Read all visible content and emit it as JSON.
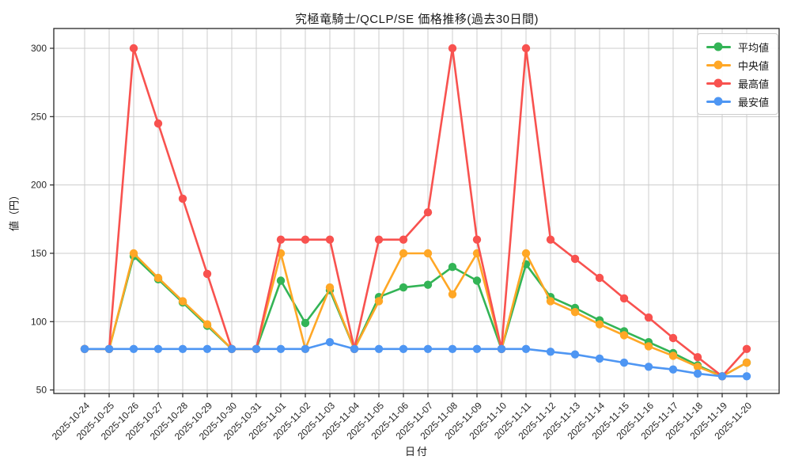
{
  "figure": {
    "title": "究極竜騎士/QCLP/SE 価格推移(過去30日間)",
    "xlabel": "日付",
    "ylabel": "値（円）"
  },
  "legend": {
    "position": "upper right",
    "items": [
      {
        "key": "average",
        "label": "平均値",
        "color": "#33b456"
      },
      {
        "key": "median",
        "label": "中央値",
        "color": "#ffa726"
      },
      {
        "key": "max",
        "label": "最高値",
        "color": "#f8524f"
      },
      {
        "key": "min",
        "label": "最安値",
        "color": "#4e96f3"
      }
    ]
  },
  "chart_data": {
    "type": "line",
    "title": "究極竜騎士/QCLP/SE 価格推移(過去30日間)",
    "xlabel": "日付",
    "ylabel": "値（円）",
    "grid": true,
    "legend_position": "upper right",
    "marker": "circle",
    "ylim": [
      47,
      315
    ],
    "y_ticks": [
      50,
      100,
      150,
      200,
      250,
      300
    ],
    "x": [
      "2025-10-24",
      "2025-10-25",
      "2025-10-26",
      "2025-10-27",
      "2025-10-28",
      "2025-10-29",
      "2025-10-30",
      "2025-10-31",
      "2025-11-01",
      "2025-11-02",
      "2025-11-03",
      "2025-11-04",
      "2025-11-05",
      "2025-11-06",
      "2025-11-07",
      "2025-11-08",
      "2025-11-09",
      "2025-11-10",
      "2025-11-11",
      "2025-11-12",
      "2025-11-13",
      "2025-11-14",
      "2025-11-15",
      "2025-11-16",
      "2025-11-17",
      "2025-11-18",
      "2025-11-19",
      "2025-11-20"
    ],
    "series": [
      {
        "key": "average",
        "name": "平均値",
        "color": "#33b456",
        "values": [
          80,
          80,
          148,
          131,
          114,
          97,
          80,
          80,
          130,
          99,
          123,
          80,
          118,
          125,
          127,
          140,
          130,
          80,
          142,
          118,
          110,
          101,
          93,
          85,
          77,
          68,
          60,
          70
        ]
      },
      {
        "key": "median",
        "name": "中央値",
        "color": "#ffa726",
        "values": [
          80,
          80,
          150,
          132,
          115,
          98,
          80,
          80,
          150,
          80,
          125,
          80,
          115,
          150,
          150,
          120,
          150,
          80,
          150,
          115,
          107,
          98,
          90,
          82,
          75,
          67,
          60,
          70
        ]
      },
      {
        "key": "max",
        "name": "最高値",
        "color": "#f8524f",
        "values": [
          80,
          80,
          300,
          245,
          190,
          135,
          80,
          80,
          160,
          160,
          160,
          80,
          160,
          160,
          180,
          300,
          160,
          80,
          300,
          160,
          146,
          132,
          117,
          103,
          88,
          74,
          60,
          80
        ]
      },
      {
        "key": "min",
        "name": "最安値",
        "color": "#4e96f3",
        "values": [
          80,
          80,
          80,
          80,
          80,
          80,
          80,
          80,
          80,
          80,
          85,
          80,
          80,
          80,
          80,
          80,
          80,
          80,
          80,
          78,
          76,
          73,
          70,
          67,
          65,
          62,
          60,
          60
        ]
      }
    ],
    "style": {
      "grid_color": "#cccccc",
      "spine_color": "#262626",
      "tick_label_color": "#262626",
      "background": "#ffffff"
    }
  }
}
